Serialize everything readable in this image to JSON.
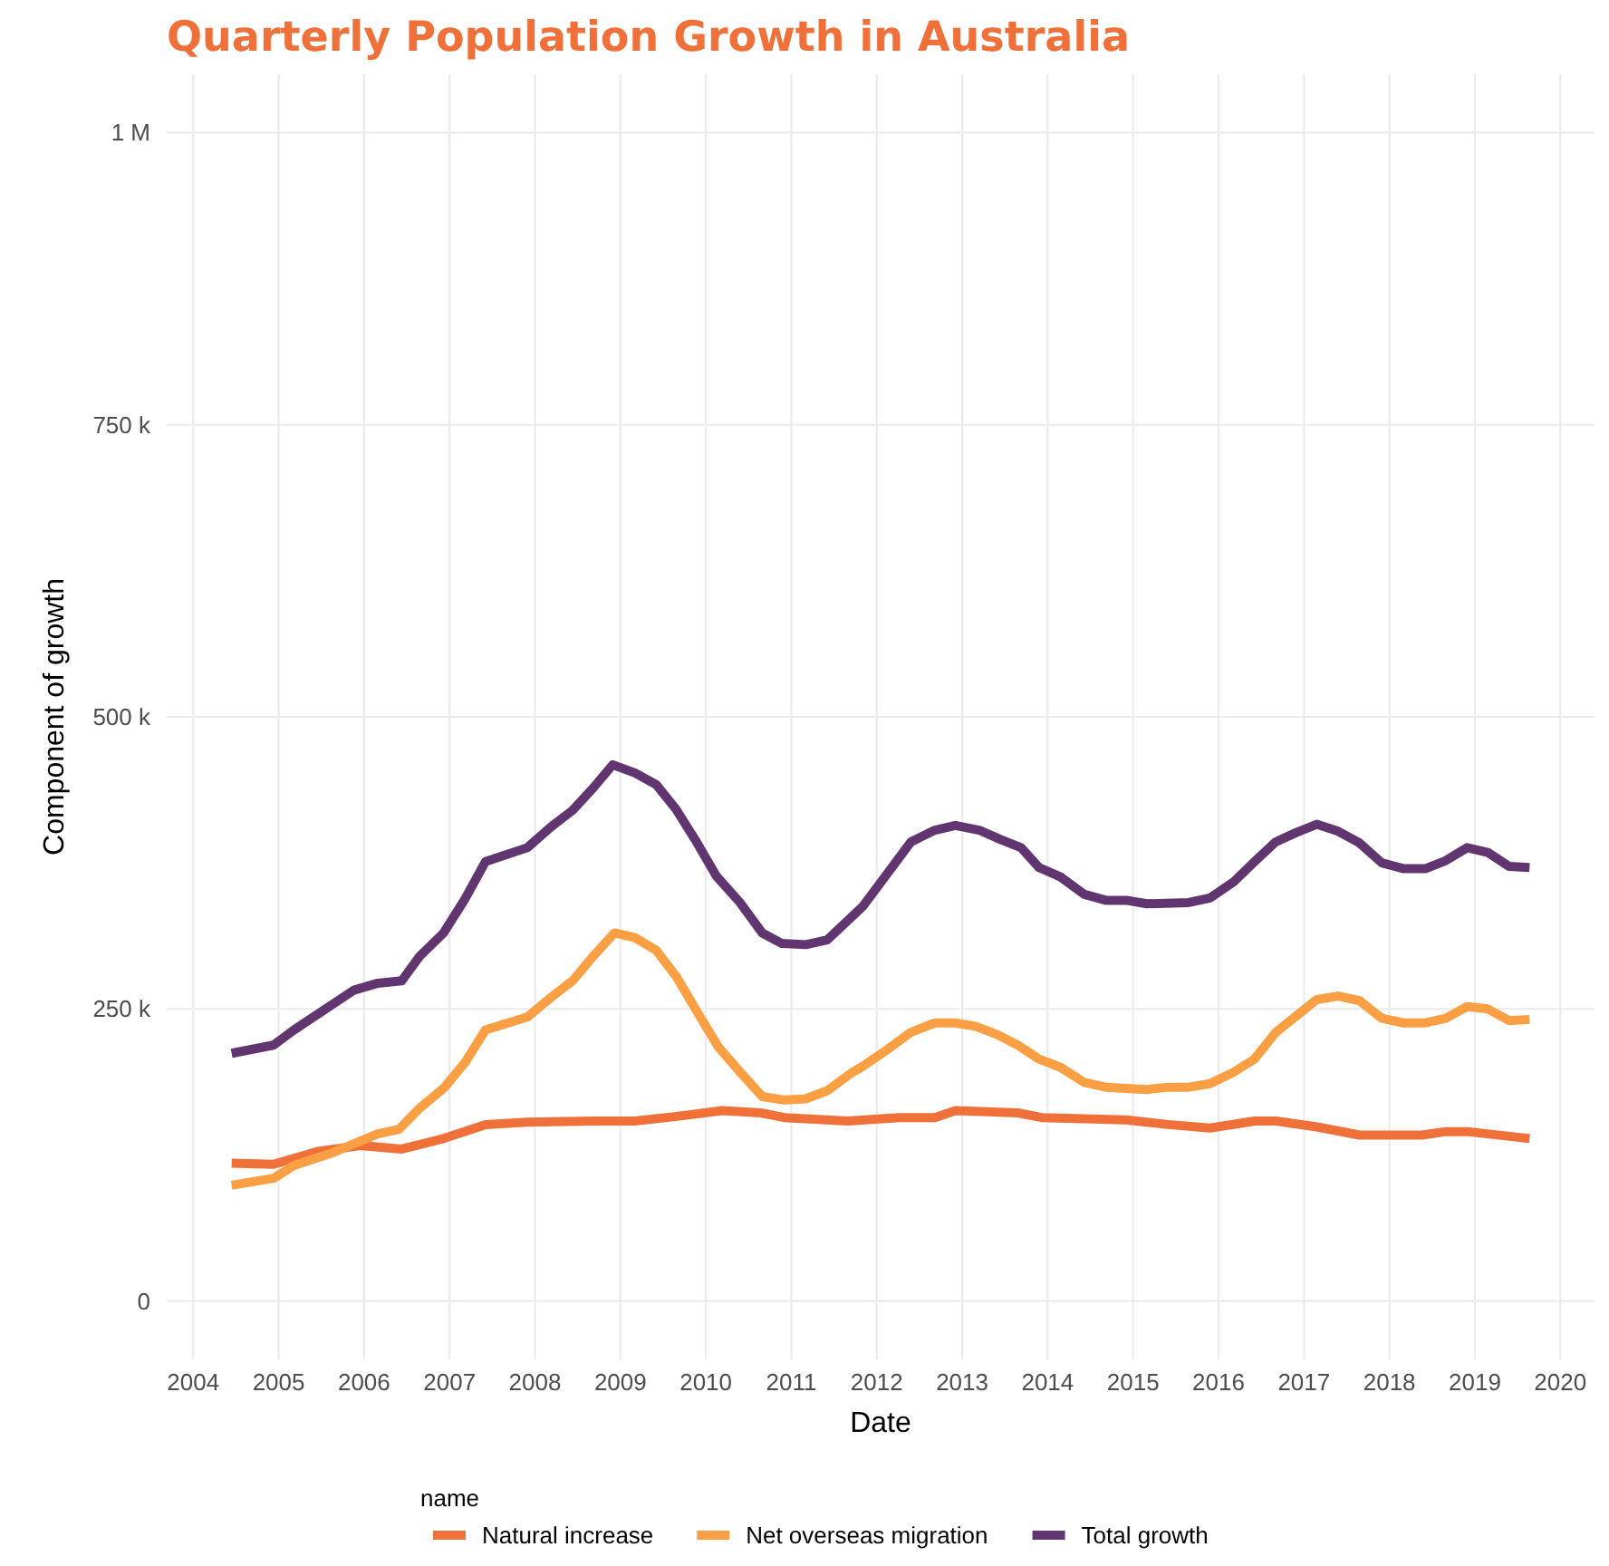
{
  "chart_data": {
    "type": "line",
    "title": "Quarterly Population Growth in Australia",
    "xlabel": "Date",
    "ylabel": "Component of growth",
    "legend_title": "name",
    "legend": "bottom",
    "grid": true,
    "line_style": "solid",
    "marker": "none",
    "xlim": [
      2003.69,
      2020.4
    ],
    "xticks": [
      2004,
      2005,
      2006,
      2007,
      2008,
      2009,
      2010,
      2011,
      2012,
      2013,
      2014,
      2015,
      2016,
      2017,
      2018,
      2019,
      2020
    ],
    "ylim": [
      -50000,
      1050000
    ],
    "yticks": [
      0,
      {
        "value": 250000,
        "label": "250 k"
      },
      {
        "value": 500000,
        "label": "500 k"
      },
      {
        "value": 750000,
        "label": "750 k"
      },
      {
        "value": 1000000,
        "label": "1 M"
      }
    ],
    "series": [
      {
        "name": "Natural increase",
        "color": "#f07039",
        "x": [
          2004.45,
          2004.94,
          2005.46,
          2005.95,
          2006.44,
          2006.93,
          2007.42,
          2007.91,
          2008.68,
          2009.17,
          2009.66,
          2010.19,
          2010.64,
          2010.92,
          2011.66,
          2012.26,
          2012.68,
          2012.92,
          2013.65,
          2013.93,
          2014.92,
          2015.41,
          2015.9,
          2016.42,
          2016.67,
          2017.15,
          2017.65,
          2018.38,
          2018.66,
          2018.91,
          2019.64
        ],
        "values": [
          118000,
          117000,
          128000,
          133000,
          130000,
          139000,
          151000,
          153000,
          154000,
          154000,
          158000,
          163000,
          161000,
          157000,
          154000,
          157000,
          157000,
          163000,
          161000,
          157000,
          155000,
          151000,
          148000,
          154000,
          154000,
          149000,
          142000,
          142000,
          145000,
          145000,
          139000
        ]
      },
      {
        "name": "Net overseas migration",
        "color": "#fb9f45",
        "x": [
          2004.45,
          2004.94,
          2005.18,
          2005.6,
          2006.16,
          2006.41,
          2006.65,
          2006.93,
          2007.18,
          2007.42,
          2007.91,
          2008.19,
          2008.44,
          2008.68,
          2008.93,
          2009.17,
          2009.42,
          2009.66,
          2009.91,
          2010.15,
          2010.4,
          2010.66,
          2010.92,
          2011.17,
          2011.42,
          2011.7,
          2011.84,
          2012.12,
          2012.4,
          2012.68,
          2012.92,
          2013.16,
          2013.41,
          2013.65,
          2013.9,
          2014.15,
          2014.43,
          2014.68,
          2015.16,
          2015.41,
          2015.65,
          2015.9,
          2016.18,
          2016.42,
          2016.67,
          2016.91,
          2017.15,
          2017.4,
          2017.65,
          2017.91,
          2018.17,
          2018.42,
          2018.66,
          2018.91,
          2019.15,
          2019.4,
          2019.64
        ],
        "values": [
          99000,
          105000,
          116000,
          126000,
          143000,
          147000,
          165000,
          182000,
          204000,
          232000,
          243000,
          260000,
          274000,
          295000,
          315000,
          311000,
          300000,
          277000,
          246000,
          217000,
          196000,
          175000,
          172000,
          173000,
          180000,
          195000,
          201000,
          215000,
          230000,
          238000,
          238000,
          235000,
          228000,
          219000,
          207000,
          200000,
          187000,
          183000,
          181000,
          183000,
          183000,
          186000,
          196000,
          207000,
          230000,
          244000,
          258000,
          261000,
          257000,
          242000,
          238000,
          238000,
          242000,
          252000,
          250000,
          240000,
          241000
        ]
      },
      {
        "name": "Total growth",
        "color": "#613570",
        "x": [
          2004.45,
          2004.94,
          2005.18,
          2005.88,
          2006.16,
          2006.44,
          2006.65,
          2006.93,
          2007.18,
          2007.42,
          2007.91,
          2008.19,
          2008.44,
          2008.68,
          2008.91,
          2009.17,
          2009.42,
          2009.65,
          2009.89,
          2010.12,
          2010.4,
          2010.66,
          2010.89,
          2011.17,
          2011.42,
          2011.84,
          2012.4,
          2012.68,
          2012.92,
          2013.2,
          2013.45,
          2013.69,
          2013.9,
          2014.15,
          2014.43,
          2014.68,
          2014.92,
          2015.16,
          2015.65,
          2015.9,
          2016.18,
          2016.42,
          2016.67,
          2016.91,
          2017.15,
          2017.4,
          2017.65,
          2017.91,
          2018.17,
          2018.42,
          2018.66,
          2018.91,
          2019.15,
          2019.4,
          2019.64
        ],
        "values": [
          212000,
          219000,
          232000,
          266000,
          272000,
          274000,
          295000,
          315000,
          344000,
          376000,
          388000,
          406000,
          420000,
          439000,
          459000,
          452000,
          442000,
          421000,
          393000,
          364000,
          341000,
          315000,
          306000,
          305000,
          309000,
          338000,
          393000,
          403000,
          407000,
          403000,
          395000,
          388000,
          371000,
          363000,
          348000,
          343000,
          343000,
          340000,
          341000,
          345000,
          359000,
          376000,
          393000,
          401000,
          408000,
          402000,
          392000,
          375000,
          370000,
          370000,
          377000,
          388000,
          384000,
          372000,
          371000
        ]
      }
    ]
  }
}
